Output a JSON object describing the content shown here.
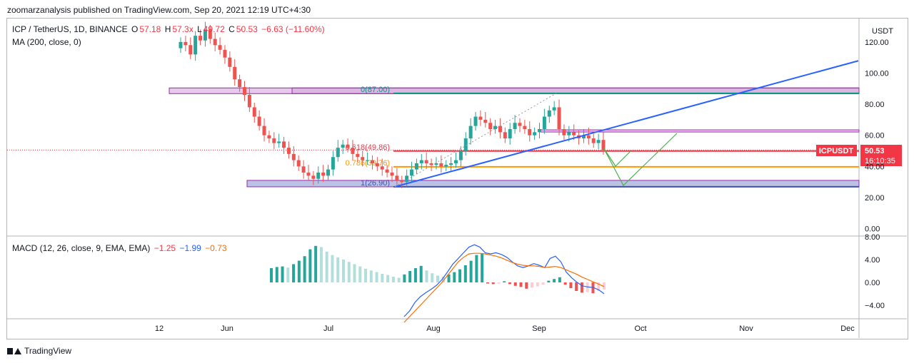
{
  "header": {
    "published_by": "zoomarzanalysis published on TradingView.com, Sep 20, 2021 12:19 UTC+4:30"
  },
  "legend": {
    "symbol": "ICP / TetherUS, 1D, BINANCE",
    "o_label": "O",
    "o_value": "57.18",
    "h_label": "H",
    "h_value": "57.3x",
    "l_label": "L",
    "l_value": "49.72",
    "c_label": "C",
    "c_value": "50.53",
    "change": "−6.63 (−11.60%)",
    "ma": "MA (200, close, 0)"
  },
  "macd_legend": {
    "label": "MACD (12, 26, close, 9, EMA, EMA)",
    "hist": "−1.25",
    "macd": "−1.99",
    "signal": "−0.73"
  },
  "price_axis": {
    "currency": "USDT",
    "ticks": [
      "120.00",
      "100.00",
      "80.00",
      "60.00",
      "40.00",
      "20.00",
      "0.00"
    ]
  },
  "macd_axis": {
    "ticks": [
      "8.00",
      "4.00",
      "0.00",
      "−4.00"
    ]
  },
  "time_axis": {
    "ticks": [
      "12",
      "Jun",
      "Jul",
      "Aug",
      "Sep",
      "Oct",
      "Nov",
      "Dec"
    ]
  },
  "fib_labels": {
    "f0": "0(87.00)",
    "f618": "0.618(49.86)",
    "f786": "0.786(39.76)",
    "f1": "1(26.90)"
  },
  "price_tag": {
    "symbol": "ICPUSDT",
    "price": "50.53",
    "countdown": "16:10:35"
  },
  "footer": {
    "brand": "TradingView"
  },
  "colors": {
    "up": "#26a69a",
    "down": "#ef5350",
    "trend": "#2962ff",
    "fib_red": "#f23645",
    "fib_orange": "#ff9800",
    "fib_teal": "#089981",
    "box": "#9c27b0",
    "projection": "#4caf50"
  },
  "chart_data": {
    "type": "candlestick",
    "symbol": "ICP / TetherUS",
    "interval": "1D",
    "ylim": [
      0,
      130
    ],
    "x_ticks": [
      "12",
      "Jun",
      "Jul",
      "Aug",
      "Sep",
      "Oct",
      "Nov",
      "Dec"
    ],
    "fib_levels": [
      {
        "ratio": 0,
        "price": 87.0
      },
      {
        "ratio": 0.618,
        "price": 49.86
      },
      {
        "ratio": 0.786,
        "price": 39.76
      },
      {
        "ratio": 1,
        "price": 26.9
      }
    ],
    "last_price": 50.53,
    "closes": [
      120,
      118,
      112,
      124,
      121,
      128,
      122,
      118,
      115,
      110,
      104,
      96,
      91,
      86,
      78,
      72,
      66,
      60,
      58,
      55,
      56,
      52,
      48,
      44,
      40,
      36,
      34,
      32,
      36,
      34,
      38,
      46,
      52,
      54,
      52,
      48,
      46,
      44,
      44,
      42,
      40,
      38,
      36,
      34,
      31,
      30,
      34,
      38,
      42,
      44,
      42,
      41,
      42,
      40,
      41,
      42,
      44,
      50,
      58,
      66,
      72,
      70,
      68,
      64,
      66,
      62,
      58,
      64,
      68,
      66,
      64,
      60,
      62,
      64,
      72,
      76,
      78,
      64,
      60,
      62,
      60,
      58,
      60,
      58,
      55,
      57,
      50.53
    ],
    "macd_hist": [
      2.5,
      2.7,
      2.8,
      2.6,
      3.2,
      3.8,
      4.6,
      5.8,
      6.4,
      6.2,
      5.4,
      4.8,
      4.4,
      4.0,
      3.6,
      3.2,
      2.8,
      2.4,
      2.1,
      1.8,
      1.5,
      1.3,
      1.0,
      0.8,
      1.4,
      2.0,
      2.5,
      2.9,
      2.1,
      1.6,
      1.2,
      1.0,
      1.4,
      1.8,
      2.3,
      3.0,
      3.8,
      4.8,
      5.0,
      -0.2,
      -0.3,
      -0.2,
      0.2,
      -0.3,
      -0.6,
      -0.8,
      -1.1,
      -0.9,
      -0.7,
      -0.4,
      0.3,
      0.6,
      0.9,
      -0.4,
      -1.0,
      -1.5,
      -1.8,
      -1.7,
      -1.9,
      -1.5,
      -1.25
    ],
    "macd_line": [
      -6,
      -5,
      -3.5,
      -2.5,
      -1.8,
      -1.2,
      -0.5,
      0.5,
      1.8,
      3.2,
      4.2,
      5.2,
      6.2,
      6.6,
      6.2,
      5.2,
      5.0,
      5.2,
      4.9,
      4.4,
      3.6,
      2.9,
      2.6,
      2.9,
      3.3,
      3.0,
      2.6,
      4.2,
      4.6,
      3.6,
      1.8,
      0.8,
      0,
      -0.6,
      -0.8,
      -0.9,
      -1.3,
      -1.99
    ],
    "signal_line": [
      -7,
      -6,
      -5,
      -4,
      -3,
      -2,
      -1,
      0,
      1.2,
      2.4,
      3.6,
      4.4,
      5.0,
      5.1,
      5.1,
      5.0,
      4.8,
      4.6,
      4.3,
      3.9,
      3.5,
      3.2,
      3.0,
      2.9,
      2.9,
      2.8,
      2.6,
      2.7,
      2.8,
      2.6,
      2.2,
      1.8,
      1.4,
      0.9,
      0.5,
      0.1,
      -0.3,
      -0.73
    ]
  }
}
